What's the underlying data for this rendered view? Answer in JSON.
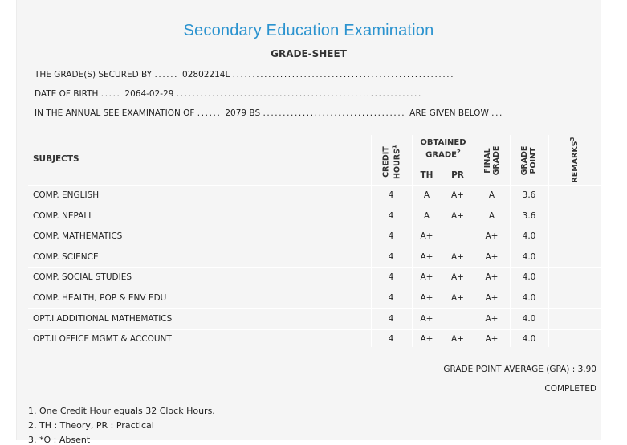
{
  "title": "Secondary Education Examination",
  "subtitle": "GRADE-SHEET",
  "student": {
    "secured_by_label": "THE GRADE(S) SECURED BY",
    "secured_by_value": "02802214L",
    "dob_label": "DATE OF BIRTH",
    "dob_value": "2064-02-29",
    "exam_label": "IN THE ANNUAL SEE EXAMINATION OF",
    "exam_value": "2079 BS",
    "exam_suffix": "ARE GIVEN BELOW"
  },
  "table": {
    "headers": {
      "subjects": "SUBJECTS",
      "credit_line1": "CREDIT",
      "credit_line2": "HOURS",
      "credit_sup": "1",
      "obtained_line1": "OBTAINED",
      "obtained_line2": "GRADE",
      "obtained_sup": "2",
      "th": "TH",
      "pr": "PR",
      "final_line1": "FINAL",
      "final_line2": "GRADE",
      "gp_line1": "GRADE",
      "gp_line2": "POINT",
      "remarks": "REMARKS",
      "remarks_sup": "3"
    },
    "rows": [
      {
        "subject": "COMP. ENGLISH",
        "credit": "4",
        "th": "A",
        "pr": "A+",
        "final": "A",
        "gp": "3.6",
        "remarks": ""
      },
      {
        "subject": "COMP. NEPALI",
        "credit": "4",
        "th": "A",
        "pr": "A+",
        "final": "A",
        "gp": "3.6",
        "remarks": ""
      },
      {
        "subject": "COMP. MATHEMATICS",
        "credit": "4",
        "th": "A+",
        "pr": "",
        "final": "A+",
        "gp": "4.0",
        "remarks": ""
      },
      {
        "subject": "COMP. SCIENCE",
        "credit": "4",
        "th": "A+",
        "pr": "A+",
        "final": "A+",
        "gp": "4.0",
        "remarks": ""
      },
      {
        "subject": "COMP. SOCIAL STUDIES",
        "credit": "4",
        "th": "A+",
        "pr": "A+",
        "final": "A+",
        "gp": "4.0",
        "remarks": ""
      },
      {
        "subject": "COMP. HEALTH, POP & ENV EDU",
        "credit": "4",
        "th": "A+",
        "pr": "A+",
        "final": "A+",
        "gp": "4.0",
        "remarks": ""
      },
      {
        "subject": "OPT.I ADDITIONAL MATHEMATICS",
        "credit": "4",
        "th": "A+",
        "pr": "",
        "final": "A+",
        "gp": "4.0",
        "remarks": ""
      },
      {
        "subject": "OPT.II OFFICE MGMT & ACCOUNT",
        "credit": "4",
        "th": "A+",
        "pr": "A+",
        "final": "A+",
        "gp": "4.0",
        "remarks": ""
      }
    ]
  },
  "gpa_text": "GRADE POINT AVERAGE (GPA) : 3.90",
  "status": "COMPLETED",
  "notes": [
    "1. One Credit Hour equals 32 Clock Hours.",
    "2. TH : Theory, PR : Practical",
    "3. *O : Absent"
  ]
}
